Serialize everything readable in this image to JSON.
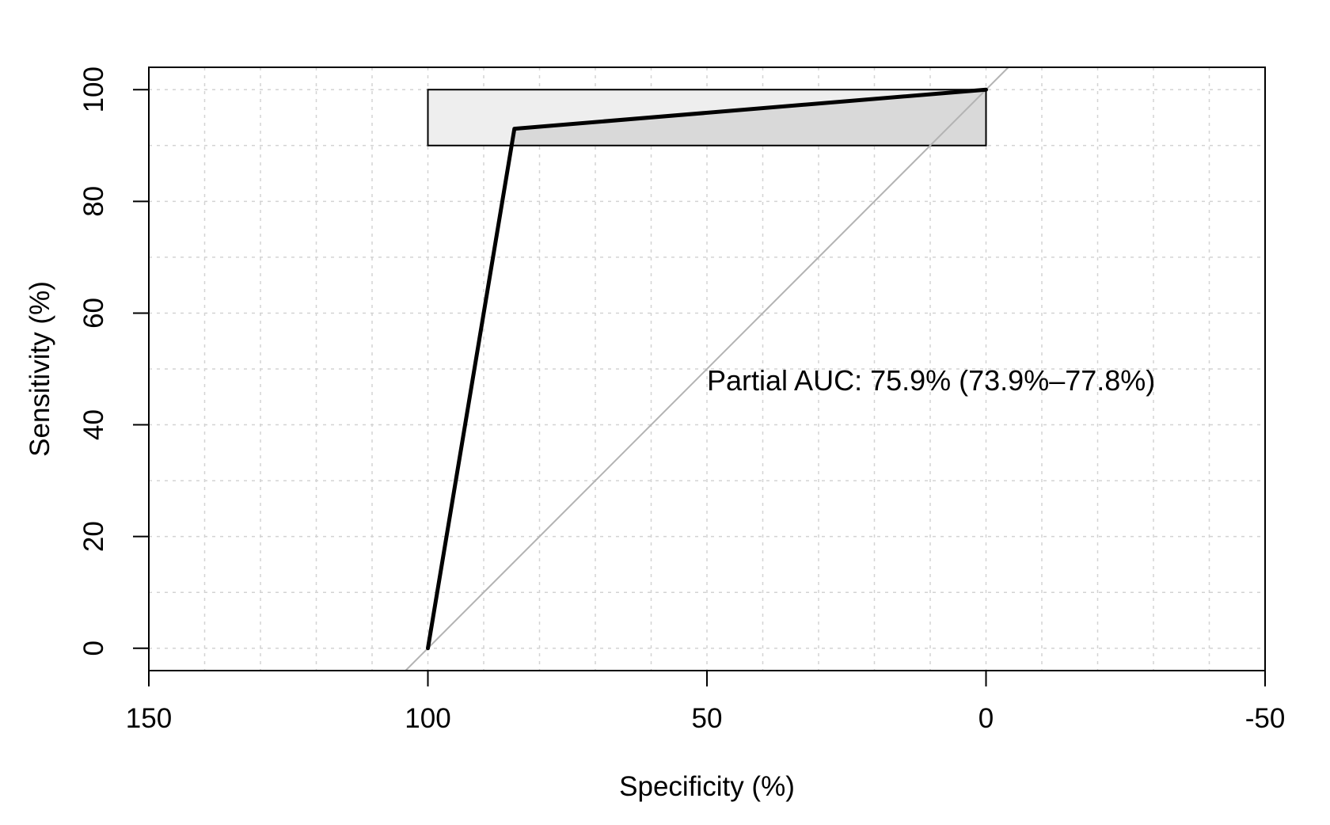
{
  "chart_data": {
    "type": "line",
    "title": "",
    "xlabel": "Specificity (%)",
    "ylabel": "Sensitivity (%)",
    "x_reversed": true,
    "xlim": [
      150,
      -50
    ],
    "ylim": [
      -4,
      104
    ],
    "x_ticks": [
      "150",
      "100",
      "50",
      "0",
      "-50"
    ],
    "y_ticks": [
      "0",
      "20",
      "40",
      "60",
      "80",
      "100"
    ],
    "grid": true,
    "grid_style": "dotted",
    "series": [
      {
        "points": [
          {
            "specificity": 100,
            "sensitivity": 0
          },
          {
            "specificity": 84.5,
            "sensitivity": 93
          },
          {
            "specificity": 0,
            "sensitivity": 100
          }
        ],
        "color": "#000000"
      }
    ],
    "diagonal_reference": {
      "color": "#b3b3b3"
    },
    "partial_auc_region": {
      "specificity_range": [
        100,
        0
      ],
      "sensitivity_range": [
        90,
        100
      ],
      "box_fill": "#eeeeee",
      "area_fill": "#d9d9d9"
    },
    "annotation": {
      "text": "Partial AUC: 75.9% (73.9%–77.8%)",
      "x": 50,
      "y": 48
    }
  }
}
